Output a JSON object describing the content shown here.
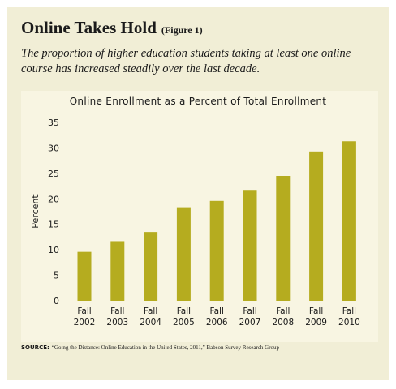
{
  "header": {
    "title": "Online Takes Hold",
    "figure_label": "(Figure 1)",
    "subtitle": "The proportion of higher education students taking at least one online course has increased steadily over the last decade."
  },
  "source": {
    "label": "SOURCE:",
    "text": "“Going the Distance: Online Education in the United States, 2011,” Babson Survey Research Group"
  },
  "colors": {
    "bar": "#b5ac1f",
    "card_background": "#f1eed6",
    "plot_background": "#f8f5e2"
  },
  "chart_data": {
    "type": "bar",
    "title": "Online Enrollment as a Percent of Total Enrollment",
    "xlabel": "",
    "ylabel": "Percent",
    "categories": [
      "Fall 2002",
      "Fall 2003",
      "Fall 2004",
      "Fall 2005",
      "Fall 2006",
      "Fall 2007",
      "Fall 2008",
      "Fall 2009",
      "Fall 2010"
    ],
    "values": [
      9.6,
      11.7,
      13.5,
      18.2,
      19.6,
      21.6,
      24.5,
      29.3,
      31.3
    ],
    "ylim": [
      0,
      35
    ],
    "yticks": [
      0,
      5,
      10,
      15,
      20,
      25,
      30,
      35
    ],
    "grid": false,
    "legend": "none"
  }
}
